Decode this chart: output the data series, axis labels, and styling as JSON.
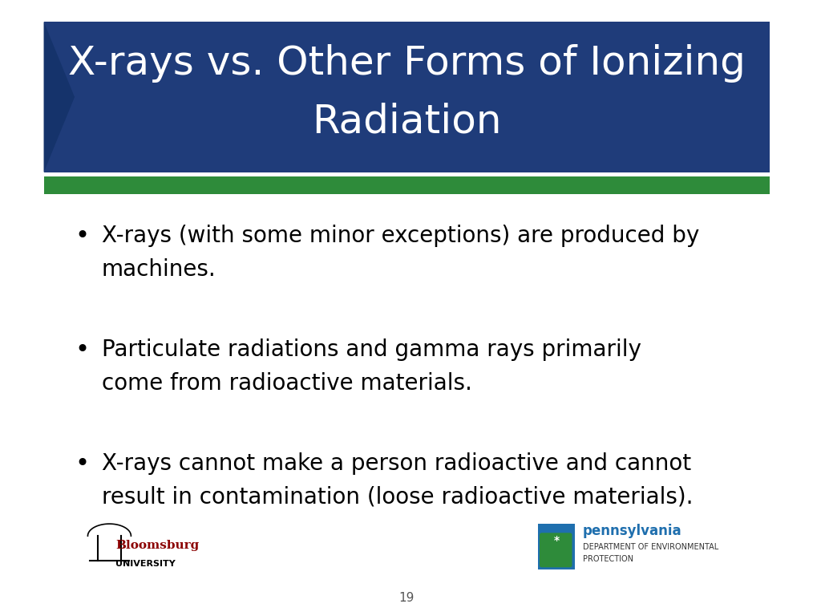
{
  "title_line1": "X-rays vs. Other Forms of Ionizing",
  "title_line2": "Radiation",
  "title_bg_color": "#1F3C7A",
  "title_text_color": "#FFFFFF",
  "green_bar_color": "#2E8B3A",
  "slide_bg_color": "#FFFFFF",
  "bullet_points": [
    "X-rays (with some minor exceptions) are produced by\nmachines.",
    "Particulate radiations and gamma rays primarily\ncome from radioactive materials.",
    "X-rays cannot make a person radioactive and cannot\nresult in contamination (loose radioactive materials)."
  ],
  "bullet_color": "#000000",
  "bullet_fontsize": 20,
  "page_number": "19",
  "title_fontsize": 36,
  "arrow_color": "#15336B"
}
